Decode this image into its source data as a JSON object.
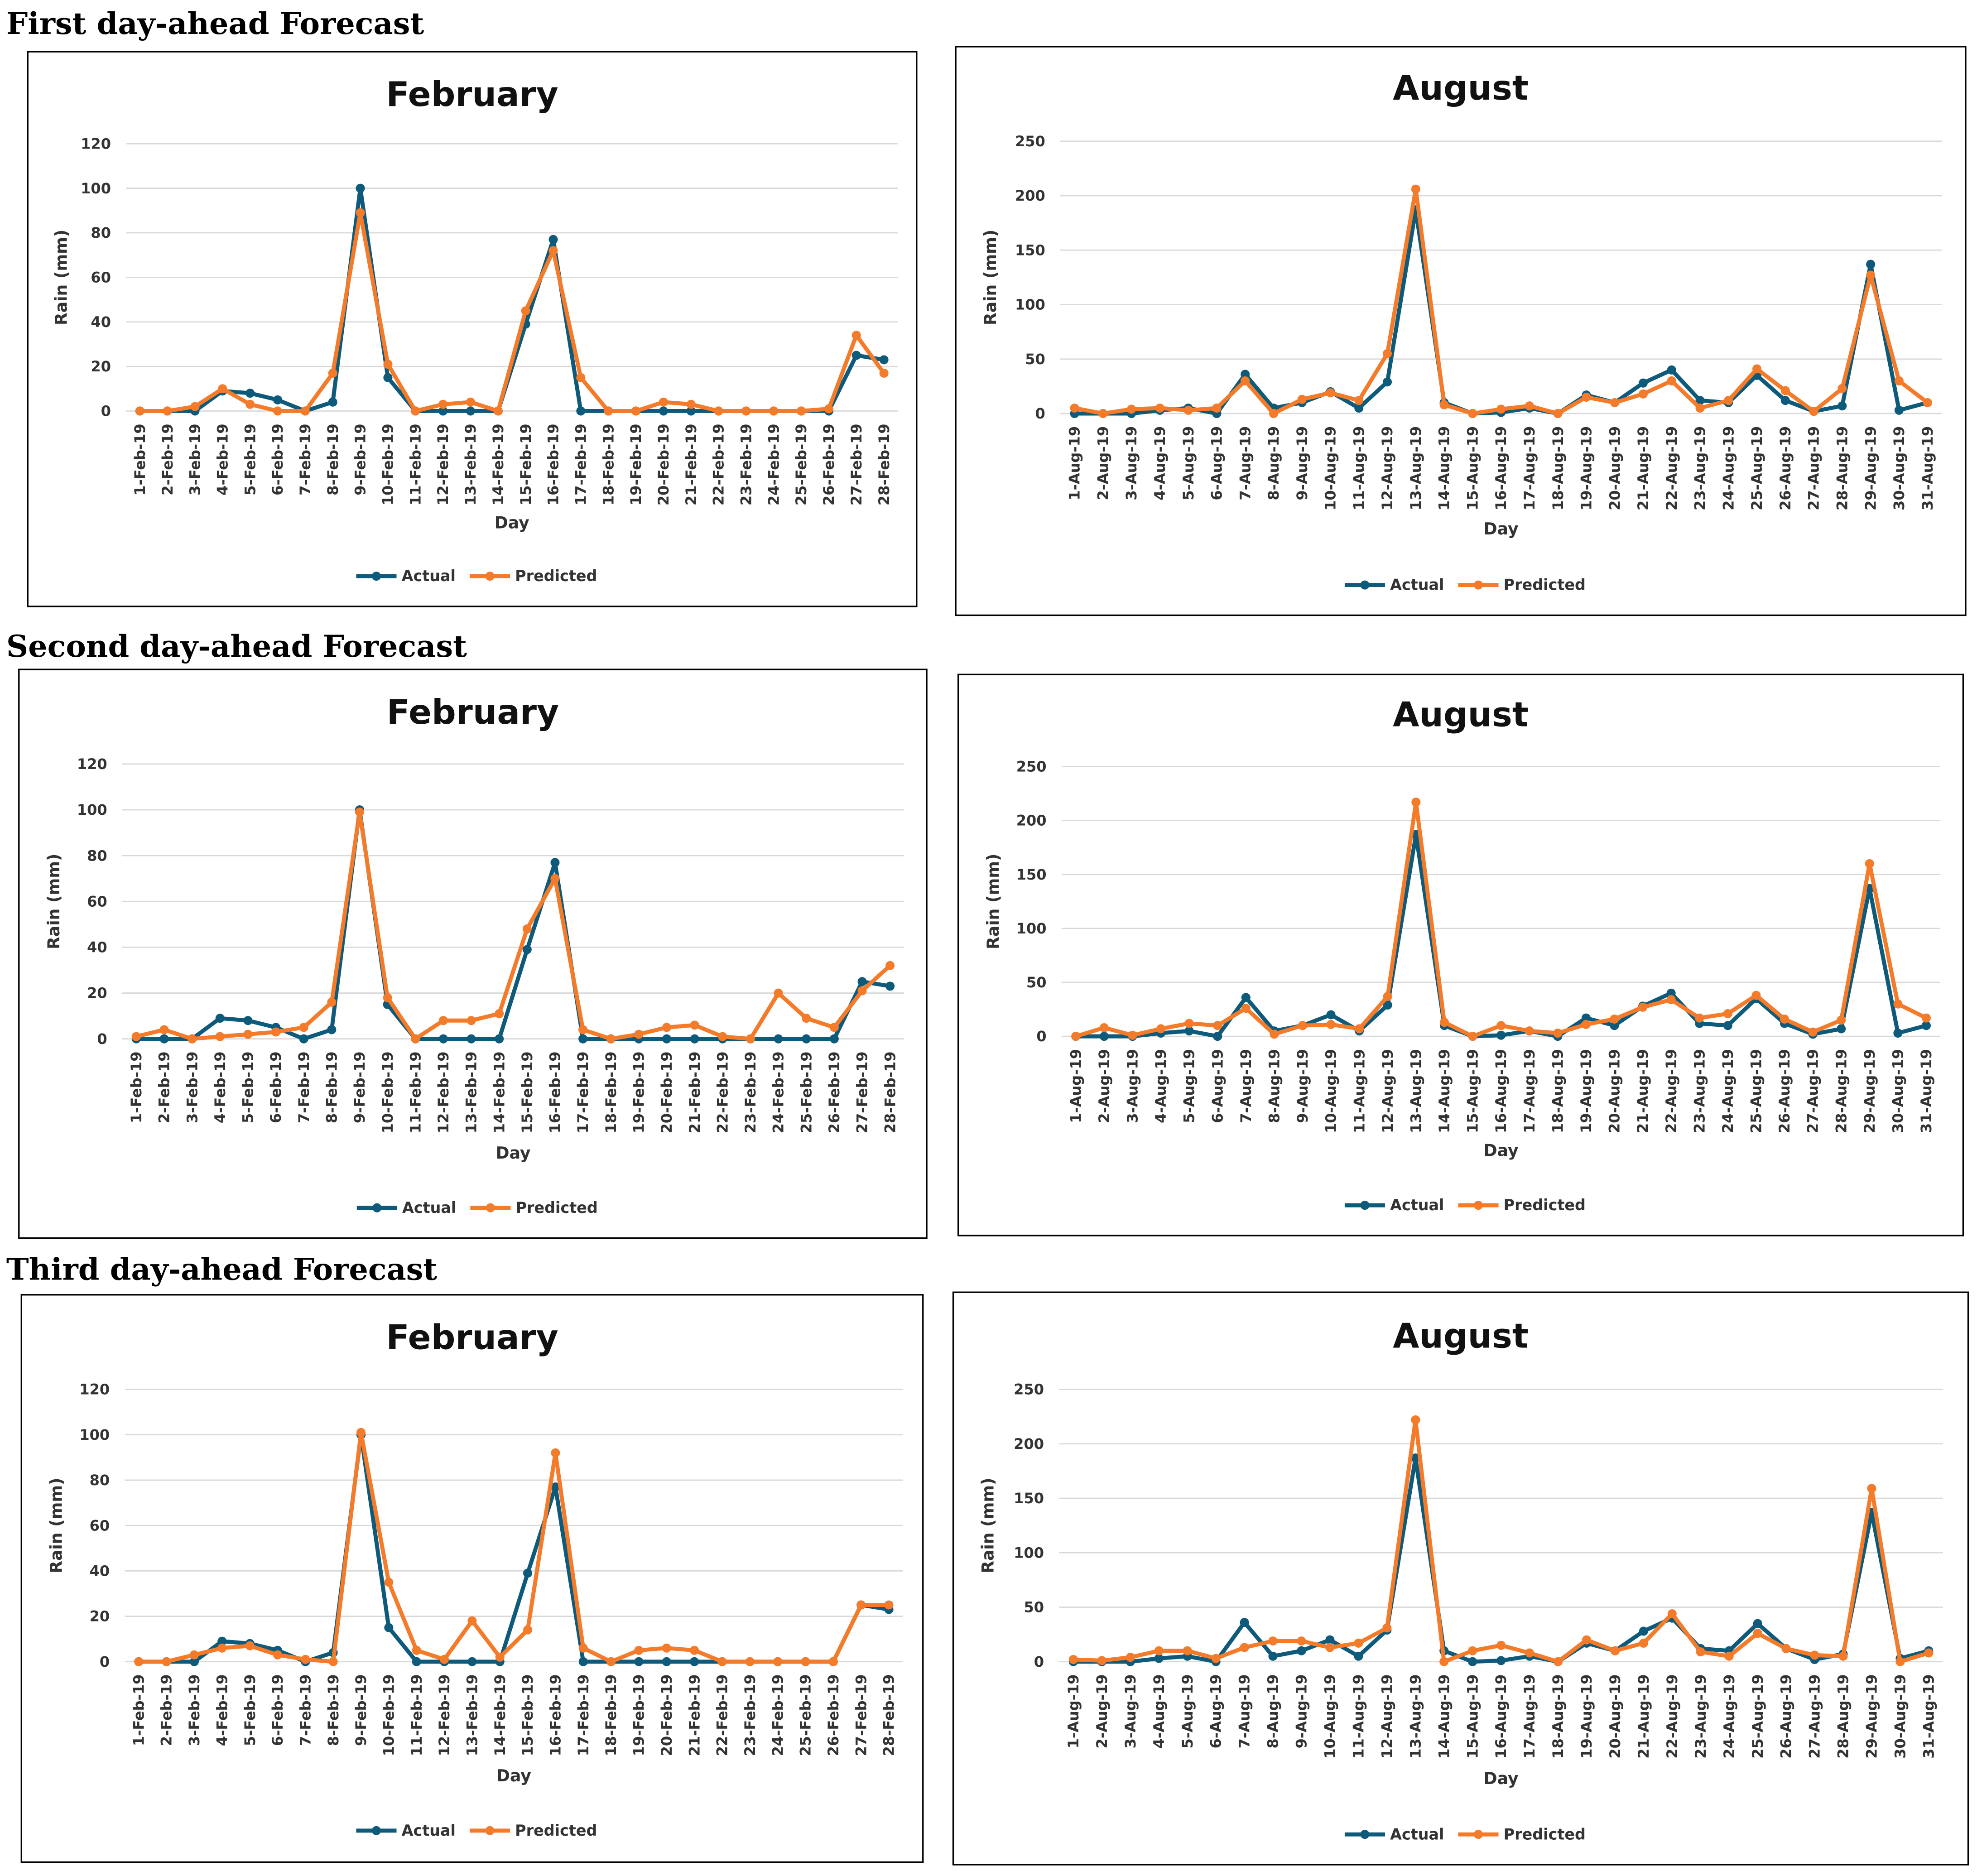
{
  "headings": [
    "First day-ahead Forecast",
    "Second day-ahead Forecast",
    "Third day-ahead Forecast"
  ],
  "chart_data": [
    {
      "type": "line",
      "title": "February",
      "x_label": "Day",
      "y_label": "Rain (mm)",
      "categories": [
        "1-Feb-19",
        "2-Feb-19",
        "3-Feb-19",
        "4-Feb-19",
        "5-Feb-19",
        "6-Feb-19",
        "7-Feb-19",
        "8-Feb-19",
        "9-Feb-19",
        "10-Feb-19",
        "11-Feb-19",
        "12-Feb-19",
        "13-Feb-19",
        "14-Feb-19",
        "15-Feb-19",
        "16-Feb-19",
        "17-Feb-19",
        "18-Feb-19",
        "19-Feb-19",
        "20-Feb-19",
        "21-Feb-19",
        "22-Feb-19",
        "23-Feb-19",
        "24-Feb-19",
        "25-Feb-19",
        "26-Feb-19",
        "27-Feb-19",
        "28-Feb-19"
      ],
      "series": [
        {
          "name": "Actual",
          "color": "#0e5a7a",
          "values": [
            0,
            0,
            0,
            9,
            8,
            5,
            0,
            4,
            100,
            15,
            0,
            0,
            0,
            0,
            39,
            77,
            0,
            0,
            0,
            0,
            0,
            0,
            0,
            0,
            0,
            0,
            25,
            23
          ]
        },
        {
          "name": "Predicted",
          "color": "#f47b2a",
          "values": [
            0,
            0,
            2,
            10,
            3,
            0,
            0,
            17,
            89,
            21,
            0,
            3,
            4,
            0,
            45,
            72,
            15,
            0,
            0,
            4,
            3,
            0,
            0,
            0,
            0,
            1,
            34,
            17
          ]
        }
      ],
      "ylim": [
        0,
        120
      ],
      "yticks": [
        0,
        20,
        40,
        60,
        80,
        100,
        120
      ],
      "grid": true,
      "legend": "bottom"
    },
    {
      "type": "line",
      "title": "August",
      "x_label": "Day",
      "y_label": "Rain (mm)",
      "categories": [
        "1-Aug-19",
        "2-Aug-19",
        "3-Aug-19",
        "4-Aug-19",
        "5-Aug-19",
        "6-Aug-19",
        "7-Aug-19",
        "8-Aug-19",
        "9-Aug-19",
        "10-Aug-19",
        "11-Aug-19",
        "12-Aug-19",
        "13-Aug-19",
        "14-Aug-19",
        "15-Aug-19",
        "16-Aug-19",
        "17-Aug-19",
        "18-Aug-19",
        "19-Aug-19",
        "20-Aug-19",
        "21-Aug-19",
        "22-Aug-19",
        "23-Aug-19",
        "24-Aug-19",
        "25-Aug-19",
        "26-Aug-19",
        "27-Aug-19",
        "28-Aug-19",
        "29-Aug-19",
        "30-Aug-19",
        "31-Aug-19"
      ],
      "series": [
        {
          "name": "Actual",
          "color": "#0e5a7a",
          "values": [
            0,
            0,
            0,
            3,
            5,
            0,
            36,
            5,
            10,
            20,
            5,
            29,
            187,
            10,
            0,
            1,
            5,
            0,
            17,
            10,
            28,
            40,
            12,
            10,
            35,
            12,
            2,
            7,
            137,
            3,
            10
          ]
        },
        {
          "name": "Predicted",
          "color": "#f47b2a",
          "values": [
            5,
            0,
            4,
            5,
            3,
            5,
            30,
            0,
            13,
            19,
            12,
            55,
            206,
            8,
            0,
            4,
            7,
            0,
            15,
            10,
            18,
            30,
            5,
            12,
            41,
            21,
            2,
            23,
            127,
            30,
            10
          ]
        }
      ],
      "ylim": [
        0,
        250
      ],
      "yticks": [
        0,
        50,
        100,
        150,
        200,
        250
      ],
      "grid": true,
      "legend": "bottom"
    },
    {
      "type": "line",
      "title": "February",
      "x_label": "Day",
      "y_label": "Rain (mm)",
      "categories": [
        "1-Feb-19",
        "2-Feb-19",
        "3-Feb-19",
        "4-Feb-19",
        "5-Feb-19",
        "6-Feb-19",
        "7-Feb-19",
        "8-Feb-19",
        "9-Feb-19",
        "10-Feb-19",
        "11-Feb-19",
        "12-Feb-19",
        "13-Feb-19",
        "14-Feb-19",
        "15-Feb-19",
        "16-Feb-19",
        "17-Feb-19",
        "18-Feb-19",
        "19-Feb-19",
        "20-Feb-19",
        "21-Feb-19",
        "22-Feb-19",
        "23-Feb-19",
        "24-Feb-19",
        "25-Feb-19",
        "26-Feb-19",
        "27-Feb-19",
        "28-Feb-19"
      ],
      "series": [
        {
          "name": "Actual",
          "color": "#0e5a7a",
          "values": [
            0,
            0,
            0,
            9,
            8,
            5,
            0,
            4,
            100,
            15,
            0,
            0,
            0,
            0,
            39,
            77,
            0,
            0,
            0,
            0,
            0,
            0,
            0,
            0,
            0,
            0,
            25,
            23
          ]
        },
        {
          "name": "Predicted",
          "color": "#f47b2a",
          "values": [
            1,
            4,
            0,
            1,
            2,
            3,
            5,
            16,
            99,
            18,
            0,
            8,
            8,
            11,
            48,
            70,
            4,
            0,
            2,
            5,
            6,
            1,
            0,
            20,
            9,
            5,
            21,
            32
          ]
        }
      ],
      "ylim": [
        0,
        120
      ],
      "yticks": [
        0,
        20,
        40,
        60,
        80,
        100,
        120
      ],
      "grid": true,
      "legend": "bottom"
    },
    {
      "type": "line",
      "title": "August",
      "x_label": "Day",
      "y_label": "Rain (mm)",
      "categories": [
        "1-Aug-19",
        "2-Aug-19",
        "3-Aug-19",
        "4-Aug-19",
        "5-Aug-19",
        "6-Aug-19",
        "7-Aug-19",
        "8-Aug-19",
        "9-Aug-19",
        "10-Aug-19",
        "11-Aug-19",
        "12-Aug-19",
        "13-Aug-19",
        "14-Aug-19",
        "15-Aug-19",
        "16-Aug-19",
        "17-Aug-19",
        "18-Aug-19",
        "19-Aug-19",
        "20-Aug-19",
        "21-Aug-19",
        "22-Aug-19",
        "23-Aug-19",
        "24-Aug-19",
        "25-Aug-19",
        "26-Aug-19",
        "27-Aug-19",
        "28-Aug-19",
        "29-Aug-19",
        "30-Aug-19",
        "31-Aug-19"
      ],
      "series": [
        {
          "name": "Actual",
          "color": "#0e5a7a",
          "values": [
            0,
            0,
            0,
            3,
            5,
            0,
            36,
            5,
            10,
            20,
            5,
            29,
            187,
            10,
            0,
            1,
            5,
            0,
            17,
            10,
            28,
            40,
            12,
            10,
            35,
            12,
            2,
            7,
            137,
            3,
            10
          ]
        },
        {
          "name": "Predicted",
          "color": "#f47b2a",
          "values": [
            0,
            8,
            1,
            7,
            12,
            10,
            26,
            2,
            10,
            11,
            7,
            37,
            217,
            13,
            0,
            10,
            5,
            3,
            11,
            16,
            27,
            34,
            17,
            21,
            38,
            16,
            4,
            15,
            160,
            30,
            17
          ]
        }
      ],
      "ylim": [
        0,
        250
      ],
      "yticks": [
        0,
        50,
        100,
        150,
        200,
        250
      ],
      "grid": true,
      "legend": "bottom"
    },
    {
      "type": "line",
      "title": "February",
      "x_label": "Day",
      "y_label": "Rain (mm)",
      "categories": [
        "1-Feb-19",
        "2-Feb-19",
        "3-Feb-19",
        "4-Feb-19",
        "5-Feb-19",
        "6-Feb-19",
        "7-Feb-19",
        "8-Feb-19",
        "9-Feb-19",
        "10-Feb-19",
        "11-Feb-19",
        "12-Feb-19",
        "13-Feb-19",
        "14-Feb-19",
        "15-Feb-19",
        "16-Feb-19",
        "17-Feb-19",
        "18-Feb-19",
        "19-Feb-19",
        "20-Feb-19",
        "21-Feb-19",
        "22-Feb-19",
        "23-Feb-19",
        "24-Feb-19",
        "25-Feb-19",
        "26-Feb-19",
        "27-Feb-19",
        "28-Feb-19"
      ],
      "series": [
        {
          "name": "Actual",
          "color": "#0e5a7a",
          "values": [
            0,
            0,
            0,
            9,
            8,
            5,
            0,
            4,
            100,
            15,
            0,
            0,
            0,
            0,
            39,
            77,
            0,
            0,
            0,
            0,
            0,
            0,
            0,
            0,
            0,
            0,
            25,
            23
          ]
        },
        {
          "name": "Predicted",
          "color": "#f47b2a",
          "values": [
            0,
            0,
            3,
            6,
            7,
            3,
            1,
            0,
            101,
            35,
            5,
            1,
            18,
            2,
            14,
            92,
            6,
            0,
            5,
            6,
            5,
            0,
            0,
            0,
            0,
            0,
            25,
            25
          ]
        }
      ],
      "ylim": [
        0,
        120
      ],
      "yticks": [
        0,
        20,
        40,
        60,
        80,
        100,
        120
      ],
      "grid": true,
      "legend": "bottom"
    },
    {
      "type": "line",
      "title": "August",
      "x_label": "Day",
      "y_label": "Rain (mm)",
      "categories": [
        "1-Aug-19",
        "2-Aug-19",
        "3-Aug-19",
        "4-Aug-19",
        "5-Aug-19",
        "6-Aug-19",
        "7-Aug-19",
        "8-Aug-19",
        "9-Aug-19",
        "10-Aug-19",
        "11-Aug-19",
        "12-Aug-19",
        "13-Aug-19",
        "14-Aug-19",
        "15-Aug-19",
        "16-Aug-19",
        "17-Aug-19",
        "18-Aug-19",
        "19-Aug-19",
        "20-Aug-19",
        "21-Aug-19",
        "22-Aug-19",
        "23-Aug-19",
        "24-Aug-19",
        "25-Aug-19",
        "26-Aug-19",
        "27-Aug-19",
        "28-Aug-19",
        "29-Aug-19",
        "30-Aug-19",
        "31-Aug-19"
      ],
      "series": [
        {
          "name": "Actual",
          "color": "#0e5a7a",
          "values": [
            0,
            0,
            0,
            3,
            5,
            0,
            36,
            5,
            10,
            20,
            5,
            29,
            187,
            10,
            0,
            1,
            5,
            0,
            17,
            10,
            28,
            40,
            12,
            10,
            35,
            12,
            2,
            7,
            137,
            3,
            10
          ]
        },
        {
          "name": "Predicted",
          "color": "#f47b2a",
          "values": [
            2,
            1,
            4,
            10,
            10,
            3,
            13,
            19,
            19,
            13,
            17,
            31,
            222,
            0,
            10,
            15,
            8,
            0,
            20,
            10,
            17,
            44,
            9,
            5,
            26,
            12,
            6,
            5,
            159,
            0,
            8
          ]
        }
      ],
      "ylim": [
        0,
        250
      ],
      "yticks": [
        0,
        50,
        100,
        150,
        200,
        250
      ],
      "grid": true,
      "legend": "bottom"
    }
  ]
}
